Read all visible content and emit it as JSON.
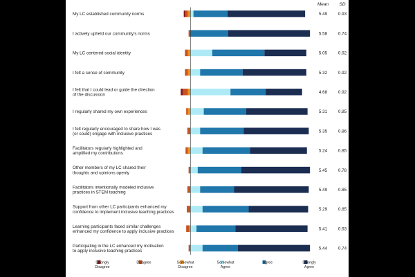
{
  "chart_data": {
    "type": "bar",
    "stacked": true,
    "orientation": "horizontal",
    "headers": {
      "mean": "Mean",
      "sd": "SD"
    },
    "categories": [
      [
        "My LC established community norms"
      ],
      [
        "I actively upheld our community's norms"
      ],
      [
        "My LC centered social identity"
      ],
      [
        "I felt a sense of community"
      ],
      [
        "I felt that I could lead or guide the direction",
        "of the discussion"
      ],
      [
        "I regularly shared my own experiences"
      ],
      [
        "I felt regularly encouraged to share how I was",
        "(or could) engage with inclusive practices"
      ],
      [
        "Facilitators regularly highlighted and",
        "amplified my contributions"
      ],
      [
        "Other members of my LC shared their",
        "thoughts and opinions openly"
      ],
      [
        "Facilitators intentionally modeled inclusive",
        "practices in STEM teaching"
      ],
      [
        "Support from other LC participants enhanced my",
        "confidence to implement inclusive teaching practices"
      ],
      [
        "Learning participants faced similar challenges",
        "enhanced my confidence to apply inclusive practices"
      ],
      [
        "Participating in the LC enhanced my motivation",
        "to apply inclusive teaching practices"
      ]
    ],
    "means": [
      "5.49",
      "5.58",
      "5.05",
      "5.32",
      "4.68",
      "5.31",
      "5.35",
      "5.24",
      "5.45",
      "5.49",
      "5.29",
      "5.41",
      "5.44"
    ],
    "sds": [
      "0.93",
      "0.74",
      "0.92",
      "0.92",
      "0.92",
      "0.85",
      "0.86",
      "0.85",
      "0.78",
      "0.85",
      "0.85",
      "0.93",
      "0.74"
    ],
    "series": [
      {
        "name": "Strongly Disagree",
        "label_lines": [
          "Strongly",
          "Disagree"
        ],
        "color": "#8b1a1a",
        "values": [
          1.5,
          0,
          0,
          0,
          2,
          0,
          0,
          0,
          0,
          0,
          0,
          0,
          0
        ]
      },
      {
        "name": "Disagree",
        "label_lines": [
          "Disagree"
        ],
        "color": "#c8531e",
        "values": [
          2,
          1.5,
          2.5,
          2.5,
          4,
          1.5,
          2.5,
          2,
          1.5,
          2.5,
          3,
          2.5,
          1.5
        ]
      },
      {
        "name": "Somewhat Disagree",
        "label_lines": [
          "Somewhat",
          "Disagree"
        ],
        "color": "#f0901e",
        "values": [
          2,
          0,
          2,
          2,
          2,
          2,
          0,
          2,
          0,
          0,
          0,
          1,
          0
        ]
      },
      {
        "name": "Somewhat Agree",
        "label_lines": [
          "Somewhat",
          "Agree"
        ],
        "color": "#aeeaf5",
        "values": [
          2.5,
          0,
          18,
          8,
          33,
          11,
          8,
          10,
          6,
          8,
          10,
          5,
          10
        ]
      },
      {
        "name": "Agree",
        "label_lines": [
          "Agree"
        ],
        "color": "#1f77ab",
        "values": [
          28,
          31,
          43,
          35,
          29,
          35,
          36,
          39,
          36,
          28,
          38,
          32,
          29
        ]
      },
      {
        "name": "Strongly Agree",
        "label_lines": [
          "Strongly",
          "Agree"
        ],
        "color": "#1c2d52",
        "values": [
          64,
          67.5,
          34.5,
          52.5,
          30,
          50.5,
          53.5,
          47,
          56.5,
          61.5,
          49,
          59.5,
          59.5
        ]
      }
    ],
    "xlim": [
      0,
      100
    ],
    "reference_line_at": 9,
    "legend_position": "bottom",
    "xlabel": "",
    "ylabel": ""
  }
}
